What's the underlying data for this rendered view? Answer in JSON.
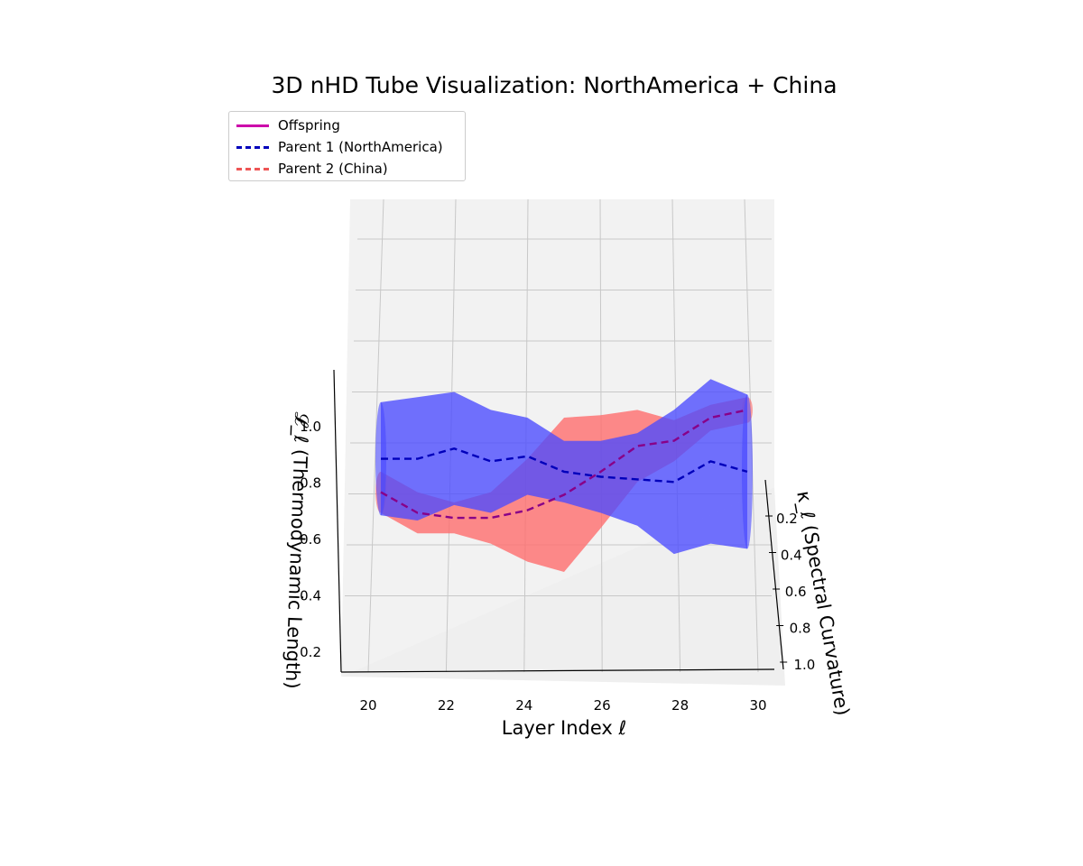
{
  "chart_data": {
    "type": "3d-tube",
    "title": "3D nHD Tube Visualization: NorthAmerica + China",
    "xlabel": "Layer Index ℓ",
    "ylabel": "κ_ℓ (Spectral Curvature)",
    "zlabel": "𝓛_ℓ (Thermodynamic Length)",
    "x_ticks": [
      "20",
      "22",
      "24",
      "26",
      "28",
      "30"
    ],
    "y_ticks": [
      "0.2",
      "0.4",
      "0.6",
      "0.8",
      "1.0"
    ],
    "z_ticks": [
      "0.2",
      "0.4",
      "0.6",
      "0.8",
      "1.0"
    ],
    "legend_position": "top-left",
    "layers": [
      20,
      21,
      22,
      23,
      24,
      25,
      26,
      27,
      28,
      29,
      30
    ],
    "series": [
      {
        "name": "Offspring",
        "color": "#cc00aa",
        "dash": "solid",
        "z": [
          0.91,
          0.83,
          0.81,
          0.81,
          0.84,
          0.9,
          0.99,
          1.09,
          1.11,
          1.2,
          1.23
        ],
        "tube_color": "#ff6a6a",
        "tube_radius": [
          0.08,
          0.08,
          0.06,
          0.1,
          0.2,
          0.3,
          0.22,
          0.14,
          0.08,
          0.05,
          0.05
        ]
      },
      {
        "name": "Parent 1 (NorthAmerica)",
        "color": "#0000bb",
        "dash": "dashed",
        "z": [
          1.04,
          1.04,
          1.08,
          1.03,
          1.05,
          0.99,
          0.97,
          0.96,
          0.95,
          1.03,
          0.99
        ],
        "tube_color": "#4a4aff",
        "tube_radius": [
          0.22,
          0.24,
          0.22,
          0.2,
          0.15,
          0.12,
          0.14,
          0.18,
          0.28,
          0.32,
          0.3
        ]
      },
      {
        "name": "Parent 2 (China)",
        "color": "#ee5555",
        "dash": "dashed"
      }
    ]
  }
}
